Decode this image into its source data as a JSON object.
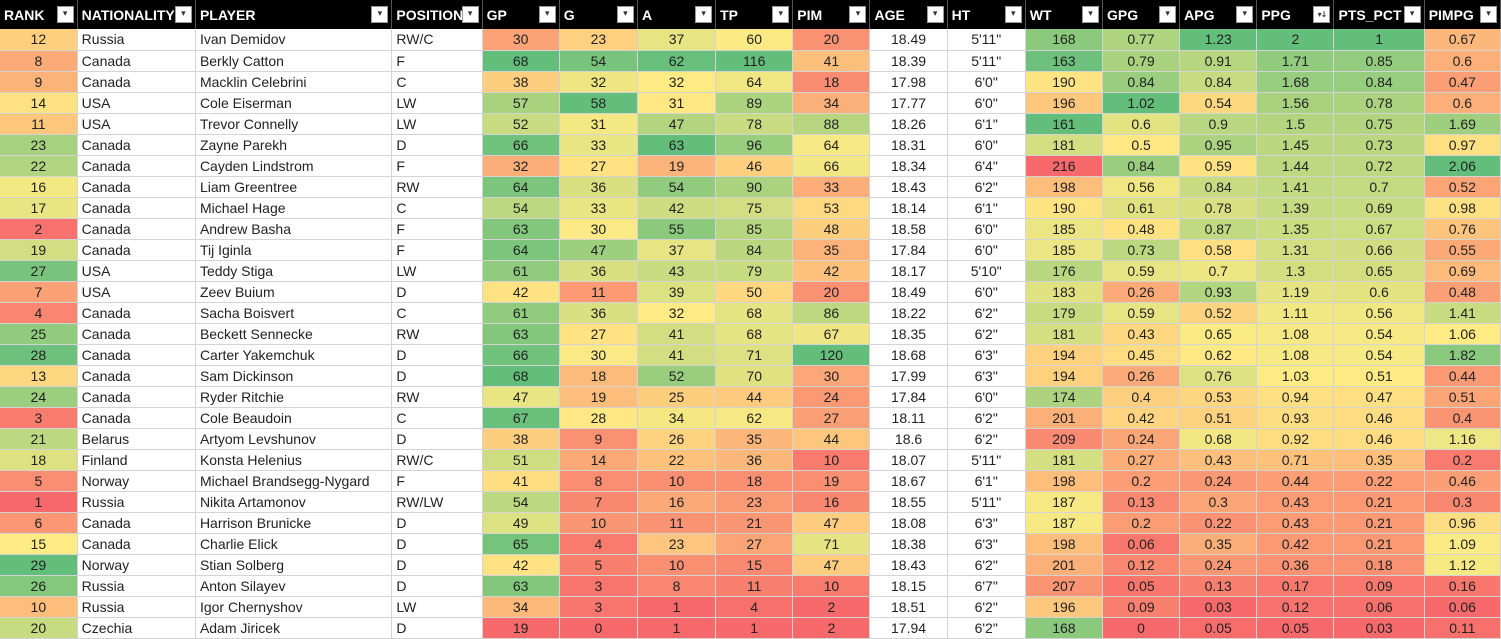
{
  "columns": [
    "RANK",
    "NATIONALITY",
    "PLAYER",
    "POSITION",
    "GP",
    "G",
    "A",
    "TP",
    "PIM",
    "AGE",
    "HT",
    "WT",
    "GPG",
    "APG",
    "PPG",
    "PTS_PCT",
    "PIMPG"
  ],
  "sorted_column": "PPG",
  "icons": {
    "filter": "filter-dropdown-icon",
    "sorted_filter": "sort-descending-filter-icon"
  },
  "rows": [
    [
      "12",
      "Russia",
      "Ivan Demidov",
      "RW/C",
      "30",
      "23",
      "37",
      "60",
      "20",
      "18.49",
      "5'11\"",
      "168",
      "0.77",
      "1.23",
      "2",
      "1",
      "0.67"
    ],
    [
      "8",
      "Canada",
      "Berkly Catton",
      "F",
      "68",
      "54",
      "62",
      "116",
      "41",
      "18.39",
      "5'11\"",
      "163",
      "0.79",
      "0.91",
      "1.71",
      "0.85",
      "0.6"
    ],
    [
      "9",
      "Canada",
      "Macklin Celebrini",
      "C",
      "38",
      "32",
      "32",
      "64",
      "18",
      "17.98",
      "6'0\"",
      "190",
      "0.84",
      "0.84",
      "1.68",
      "0.84",
      "0.47"
    ],
    [
      "14",
      "USA",
      "Cole Eiserman",
      "LW",
      "57",
      "58",
      "31",
      "89",
      "34",
      "17.77",
      "6'0\"",
      "196",
      "1.02",
      "0.54",
      "1.56",
      "0.78",
      "0.6"
    ],
    [
      "11",
      "USA",
      "Trevor Connelly",
      "LW",
      "52",
      "31",
      "47",
      "78",
      "88",
      "18.26",
      "6'1\"",
      "161",
      "0.6",
      "0.9",
      "1.5",
      "0.75",
      "1.69"
    ],
    [
      "23",
      "Canada",
      "Zayne Parekh",
      "D",
      "66",
      "33",
      "63",
      "96",
      "64",
      "18.31",
      "6'0\"",
      "181",
      "0.5",
      "0.95",
      "1.45",
      "0.73",
      "0.97"
    ],
    [
      "22",
      "Canada",
      "Cayden Lindstrom",
      "F",
      "32",
      "27",
      "19",
      "46",
      "66",
      "18.34",
      "6'4\"",
      "216",
      "0.84",
      "0.59",
      "1.44",
      "0.72",
      "2.06"
    ],
    [
      "16",
      "Canada",
      "Liam Greentree",
      "RW",
      "64",
      "36",
      "54",
      "90",
      "33",
      "18.43",
      "6'2\"",
      "198",
      "0.56",
      "0.84",
      "1.41",
      "0.7",
      "0.52"
    ],
    [
      "17",
      "Canada",
      "Michael Hage",
      "C",
      "54",
      "33",
      "42",
      "75",
      "53",
      "18.14",
      "6'1\"",
      "190",
      "0.61",
      "0.78",
      "1.39",
      "0.69",
      "0.98"
    ],
    [
      "2",
      "Canada",
      "Andrew Basha",
      "F",
      "63",
      "30",
      "55",
      "85",
      "48",
      "18.58",
      "6'0\"",
      "185",
      "0.48",
      "0.87",
      "1.35",
      "0.67",
      "0.76"
    ],
    [
      "19",
      "Canada",
      "Tij Iginla",
      "F",
      "64",
      "47",
      "37",
      "84",
      "35",
      "17.84",
      "6'0\"",
      "185",
      "0.73",
      "0.58",
      "1.31",
      "0.66",
      "0.55"
    ],
    [
      "27",
      "USA",
      "Teddy Stiga",
      "LW",
      "61",
      "36",
      "43",
      "79",
      "42",
      "18.17",
      "5'10\"",
      "176",
      "0.59",
      "0.7",
      "1.3",
      "0.65",
      "0.69"
    ],
    [
      "7",
      "USA",
      "Zeev Buium",
      "D",
      "42",
      "11",
      "39",
      "50",
      "20",
      "18.49",
      "6'0\"",
      "183",
      "0.26",
      "0.93",
      "1.19",
      "0.6",
      "0.48"
    ],
    [
      "4",
      "Canada",
      "Sacha Boisvert",
      "C",
      "61",
      "36",
      "32",
      "68",
      "86",
      "18.22",
      "6'2\"",
      "179",
      "0.59",
      "0.52",
      "1.11",
      "0.56",
      "1.41"
    ],
    [
      "25",
      "Canada",
      "Beckett Sennecke",
      "RW",
      "63",
      "27",
      "41",
      "68",
      "67",
      "18.35",
      "6'2\"",
      "181",
      "0.43",
      "0.65",
      "1.08",
      "0.54",
      "1.06"
    ],
    [
      "28",
      "Canada",
      "Carter Yakemchuk",
      "D",
      "66",
      "30",
      "41",
      "71",
      "120",
      "18.68",
      "6'3\"",
      "194",
      "0.45",
      "0.62",
      "1.08",
      "0.54",
      "1.82"
    ],
    [
      "13",
      "Canada",
      "Sam Dickinson",
      "D",
      "68",
      "18",
      "52",
      "70",
      "30",
      "17.99",
      "6'3\"",
      "194",
      "0.26",
      "0.76",
      "1.03",
      "0.51",
      "0.44"
    ],
    [
      "24",
      "Canada",
      "Ryder Ritchie",
      "RW",
      "47",
      "19",
      "25",
      "44",
      "24",
      "17.84",
      "6'0\"",
      "174",
      "0.4",
      "0.53",
      "0.94",
      "0.47",
      "0.51"
    ],
    [
      "3",
      "Canada",
      "Cole Beaudoin",
      "C",
      "67",
      "28",
      "34",
      "62",
      "27",
      "18.11",
      "6'2\"",
      "201",
      "0.42",
      "0.51",
      "0.93",
      "0.46",
      "0.4"
    ],
    [
      "21",
      "Belarus",
      "Artyom Levshunov",
      "D",
      "38",
      "9",
      "26",
      "35",
      "44",
      "18.6",
      "6'2\"",
      "209",
      "0.24",
      "0.68",
      "0.92",
      "0.46",
      "1.16"
    ],
    [
      "18",
      "Finland",
      "Konsta Helenius",
      "RW/C",
      "51",
      "14",
      "22",
      "36",
      "10",
      "18.07",
      "5'11\"",
      "181",
      "0.27",
      "0.43",
      "0.71",
      "0.35",
      "0.2"
    ],
    [
      "5",
      "Norway",
      "Michael Brandsegg-Nygard",
      "F",
      "41",
      "8",
      "10",
      "18",
      "19",
      "18.67",
      "6'1\"",
      "198",
      "0.2",
      "0.24",
      "0.44",
      "0.22",
      "0.46"
    ],
    [
      "1",
      "Russia",
      "Nikita Artamonov",
      "RW/LW",
      "54",
      "7",
      "16",
      "23",
      "16",
      "18.55",
      "5'11\"",
      "187",
      "0.13",
      "0.3",
      "0.43",
      "0.21",
      "0.3"
    ],
    [
      "6",
      "Canada",
      "Harrison Brunicke",
      "D",
      "49",
      "10",
      "11",
      "21",
      "47",
      "18.08",
      "6'3\"",
      "187",
      "0.2",
      "0.22",
      "0.43",
      "0.21",
      "0.96"
    ],
    [
      "15",
      "Canada",
      "Charlie Elick",
      "D",
      "65",
      "4",
      "23",
      "27",
      "71",
      "18.38",
      "6'3\"",
      "198",
      "0.06",
      "0.35",
      "0.42",
      "0.21",
      "1.09"
    ],
    [
      "29",
      "Norway",
      "Stian Solberg",
      "D",
      "42",
      "5",
      "10",
      "15",
      "47",
      "18.43",
      "6'2\"",
      "201",
      "0.12",
      "0.24",
      "0.36",
      "0.18",
      "1.12"
    ],
    [
      "26",
      "Russia",
      "Anton Silayev",
      "D",
      "63",
      "3",
      "8",
      "11",
      "10",
      "18.15",
      "6'7\"",
      "207",
      "0.05",
      "0.13",
      "0.17",
      "0.09",
      "0.16"
    ],
    [
      "10",
      "Russia",
      "Igor Chernyshov",
      "LW",
      "34",
      "3",
      "1",
      "4",
      "2",
      "18.51",
      "6'2\"",
      "196",
      "0.09",
      "0.03",
      "0.12",
      "0.06",
      "0.06"
    ],
    [
      "20",
      "Czechia",
      "Adam Jiricek",
      "D",
      "19",
      "0",
      "1",
      "1",
      "2",
      "17.94",
      "6'2\"",
      "168",
      "0",
      "0.05",
      "0.05",
      "0.03",
      "0.11"
    ]
  ],
  "colors": {
    "scale_low": "#f8696b",
    "scale_mid": "#ffeb84",
    "scale_high": "#63be7b",
    "header_bg": "#000000",
    "header_text": "#ffffff"
  }
}
